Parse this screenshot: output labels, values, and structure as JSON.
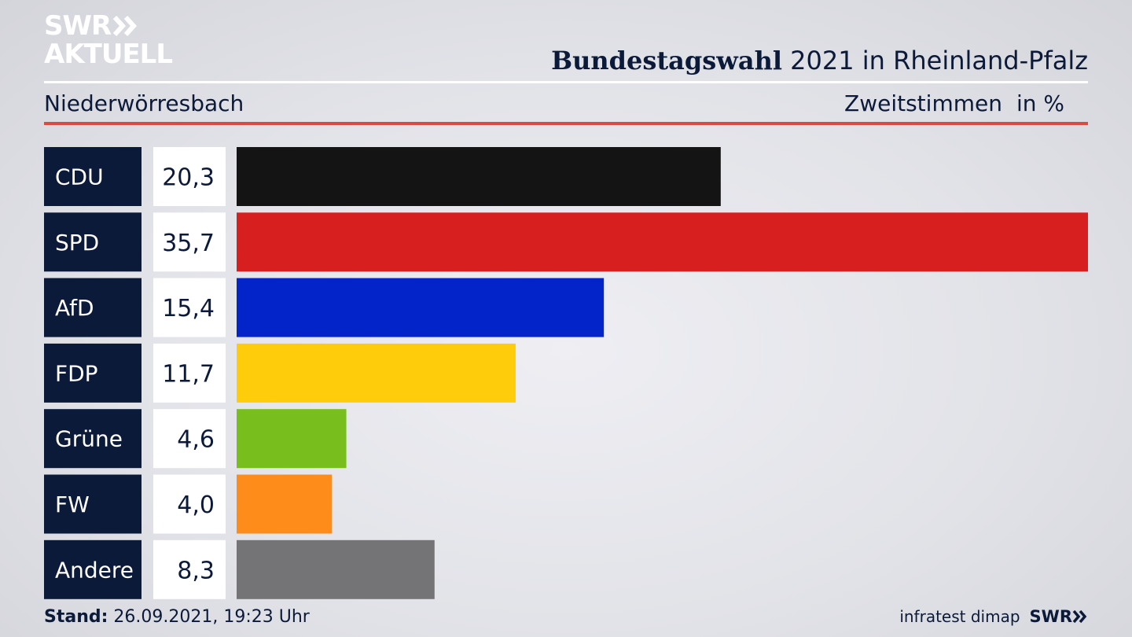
{
  "logo": {
    "line1": "SWR",
    "line2": "AKTUELL"
  },
  "header": {
    "title_bold": "Bundestagswahl",
    "title_rest": "2021 in Rheinland-Pfalz",
    "place": "Niederwörresbach",
    "measure": "Zweitstimmen",
    "unit": "in %"
  },
  "chart_data": {
    "type": "bar",
    "orientation": "horizontal",
    "categories": [
      "CDU",
      "SPD",
      "AfD",
      "FDP",
      "Grüne",
      "FW",
      "Andere"
    ],
    "values": [
      20.3,
      35.7,
      15.4,
      11.7,
      4.6,
      4.0,
      8.3
    ],
    "value_labels": [
      "20,3",
      "35,7",
      "15,4",
      "11,7",
      "4,6",
      "4,0",
      "8,3"
    ],
    "colors": [
      "#141414",
      "#d81f20",
      "#0224c8",
      "#fecc0a",
      "#78bf1d",
      "#fd8c1a",
      "#747476"
    ],
    "xlim": [
      0,
      35.7
    ]
  },
  "footer": {
    "stand_label": "Stand:",
    "stand_value": "26.09.2021, 19:23 Uhr",
    "source": "infratest dimap",
    "brand": "SWR"
  },
  "theme": {
    "navy": "#0c1a3a",
    "accent_red": "#d94a43"
  }
}
